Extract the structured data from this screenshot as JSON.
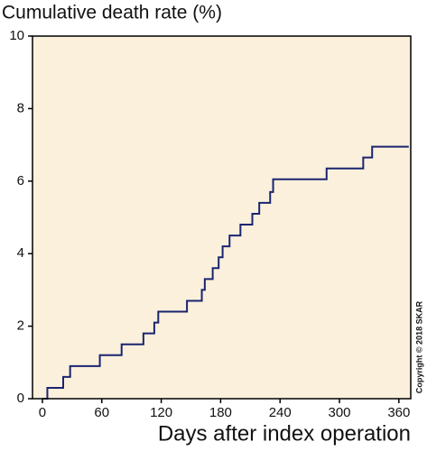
{
  "chart_data": {
    "type": "step",
    "title": "Cumulative death rate (%)",
    "x_label": "Days after index operation",
    "annotation": "Copyright © 2018 SKAR",
    "x": [
      0,
      5,
      21,
      28,
      58,
      80,
      102,
      113,
      117,
      146,
      161,
      164,
      172,
      178,
      182,
      189,
      200,
      212,
      219,
      230,
      233,
      287,
      324,
      333,
      370
    ],
    "values": [
      0,
      0.3,
      0.6,
      0.9,
      1.2,
      1.5,
      1.8,
      2.1,
      2.4,
      2.7,
      3.0,
      3.3,
      3.6,
      3.9,
      4.2,
      4.5,
      4.8,
      5.1,
      5.4,
      5.7,
      6.05,
      6.35,
      6.65,
      6.95,
      6.95
    ],
    "color": "#1b2470",
    "background": "#faf0dc",
    "xlim": [
      -10,
      372
    ],
    "xticks": [
      0,
      60,
      120,
      180,
      240,
      300,
      360
    ],
    "ylim": [
      0,
      10
    ],
    "yticks": [
      0,
      2,
      4,
      6,
      8,
      10
    ]
  }
}
